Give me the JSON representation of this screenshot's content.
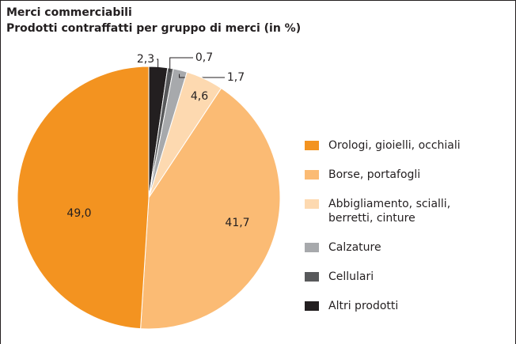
{
  "chart_data": {
    "type": "pie",
    "title": "Merci commerciabili",
    "subtitle": "Prodotti contraffatti per gruppo di merci (in %)",
    "categories": [
      "Orologi, gioielli, occhiali",
      "Borse, portafogli",
      "Abbigliamento, scialli, berretti, cinture",
      "Calzature",
      "Cellulari",
      "Altri prodotti"
    ],
    "values": [
      49.0,
      41.7,
      4.6,
      1.7,
      0.7,
      2.3
    ],
    "value_labels": [
      "49,0",
      "41,7",
      "4,6",
      "1,7",
      "0,7",
      "2,3"
    ],
    "colors": [
      "#f39320",
      "#fbbb74",
      "#fdd9b0",
      "#a7a9ac",
      "#58595b",
      "#231f20"
    ],
    "legend": "right"
  }
}
